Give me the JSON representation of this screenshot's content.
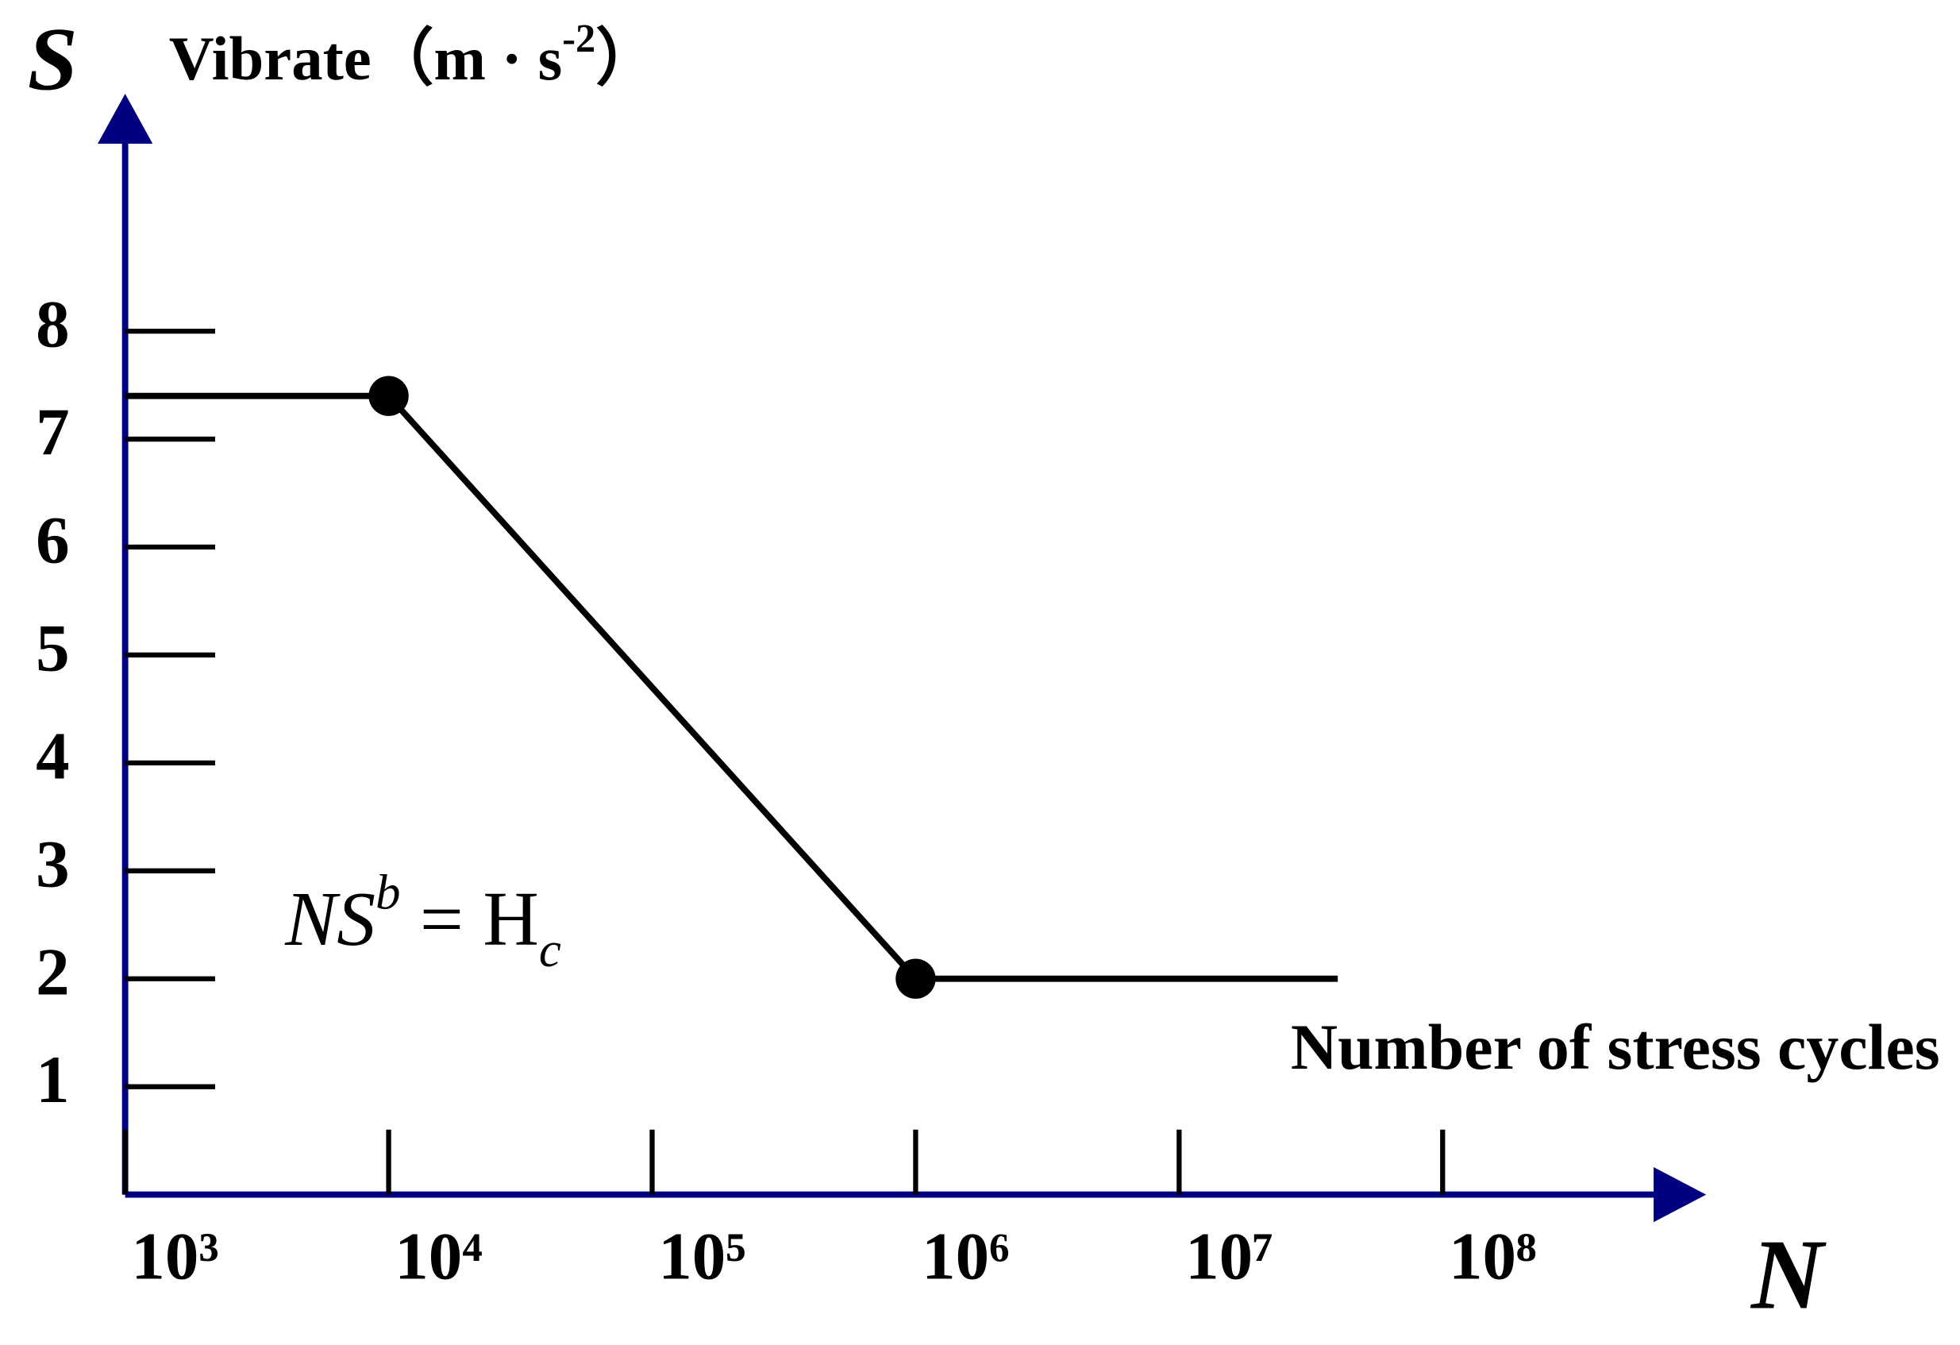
{
  "chart_data": {
    "type": "line",
    "y_symbol": "S",
    "ylabel_parts": [
      "Vibrate（m · s",
      "-2",
      "）"
    ],
    "x_symbol": "N",
    "xlabel": "Number of stress cycles",
    "annotation_parts": [
      "NS",
      "b",
      " = H",
      "c"
    ],
    "x": [
      1000,
      10000,
      1000000,
      40000000
    ],
    "series": [
      {
        "color": "#000000",
        "values": [
          7.4,
          7.4,
          2,
          2
        ]
      }
    ],
    "markers": {
      "x": [
        10000,
        1000000
      ],
      "values": [
        7.4,
        2
      ],
      "color": "#000000"
    },
    "xscale": "log",
    "xlim": [
      1000,
      1000000000
    ],
    "xticks": [
      {
        "value": 1000,
        "label": "10³"
      },
      {
        "value": 10000,
        "label": "10⁴"
      },
      {
        "value": 100000,
        "label": "10⁵"
      },
      {
        "value": 1000000,
        "label": "10⁶"
      },
      {
        "value": 10000000,
        "label": "10⁷"
      },
      {
        "value": 100000000,
        "label": "10⁸"
      }
    ],
    "ylim": [
      0,
      10.2
    ],
    "yticks": [
      1,
      2,
      3,
      4,
      5,
      6,
      7,
      8
    ],
    "axis_color": "#000080",
    "grid": false
  }
}
